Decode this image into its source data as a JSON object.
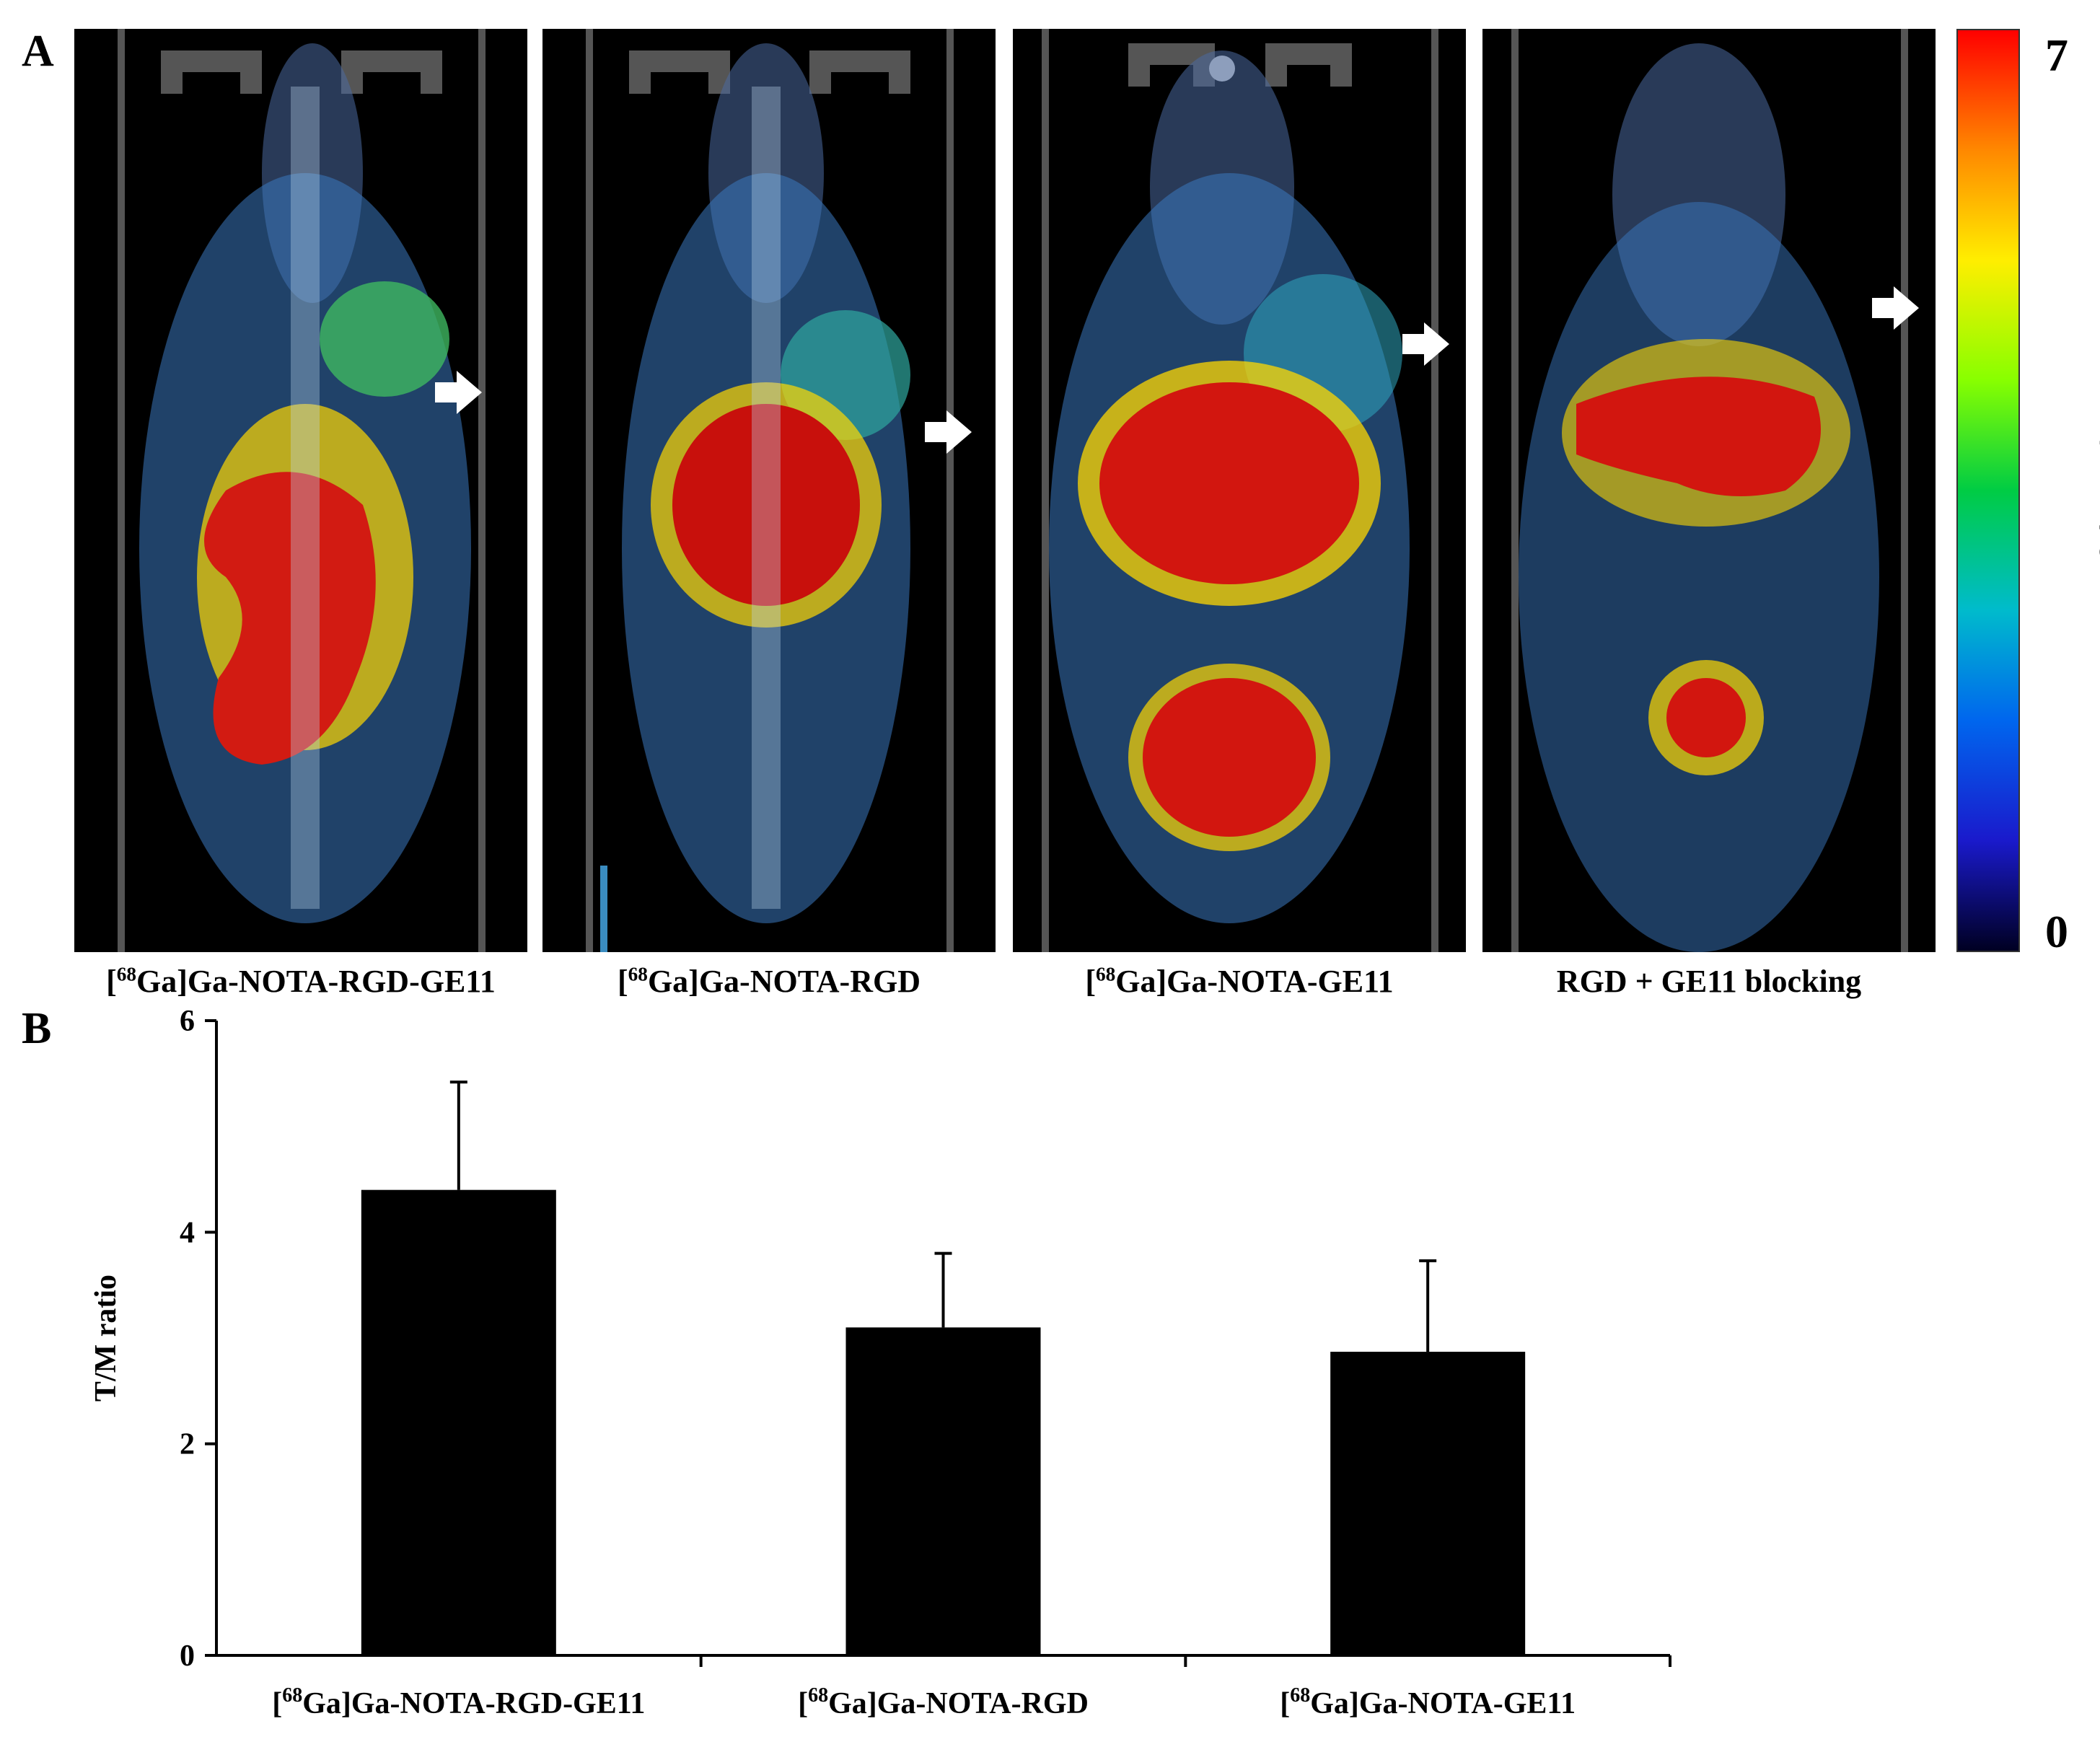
{
  "panel_a": {
    "letter": "A",
    "scans": [
      {
        "label_pre": "[",
        "label_sup": "68",
        "label_post": "Ga]Ga-NOTA-RGD-GE11"
      },
      {
        "label_pre": "[",
        "label_sup": "68",
        "label_post": "Ga]Ga-NOTA-RGD"
      },
      {
        "label_pre": "[",
        "label_sup": "68",
        "label_post": "Ga]Ga-NOTA-GE11"
      },
      {
        "label_pre": "",
        "label_sup": "",
        "label_post": "RGD + GE11 blocking"
      }
    ],
    "colorbar": {
      "max_label": "7",
      "min_label": "0",
      "title": "%ID/g",
      "colors": [
        "#ff0000",
        "#ff8800",
        "#ffee00",
        "#88ff00",
        "#00cc44",
        "#00bbcc",
        "#0066ee",
        "#1a1acc",
        "#000022"
      ]
    }
  },
  "panel_b": {
    "letter": "B"
  },
  "chart_data": {
    "type": "bar",
    "categories": [
      "[68Ga]Ga-NOTA-RGD-GE11",
      "[68Ga]Ga-NOTA-RGD",
      "[68Ga]Ga-NOTA-GE11"
    ],
    "category_labels": [
      {
        "pre": "[",
        "sup": "68",
        "post": "Ga]Ga-NOTA-RGD-GE11"
      },
      {
        "pre": "[",
        "sup": "68",
        "post": "Ga]Ga-NOTA-RGD"
      },
      {
        "pre": "[",
        "sup": "68",
        "post": "Ga]Ga-NOTA-GE11"
      }
    ],
    "values": [
      4.4,
      3.1,
      2.87
    ],
    "errors": [
      1.02,
      0.7,
      0.86
    ],
    "ylabel": "T/M ratio",
    "ylim": [
      0,
      6
    ],
    "yticks": [
      0,
      2,
      4,
      6
    ],
    "bar_color": "#000000",
    "grid": false
  }
}
